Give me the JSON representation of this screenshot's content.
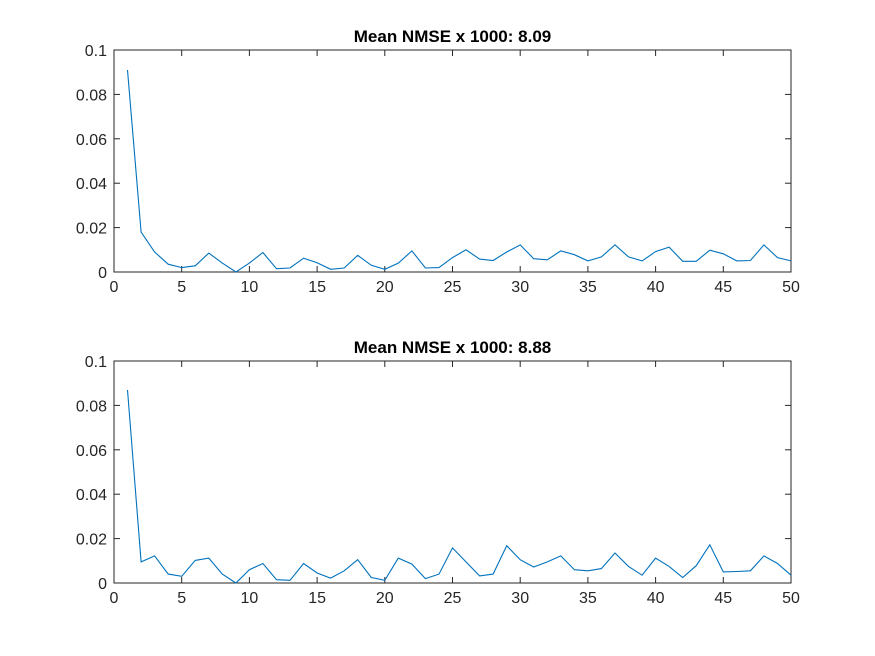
{
  "chart_data": [
    {
      "type": "line",
      "title": "Mean NMSE x 1000: 8.09",
      "xlabel": "",
      "ylabel": "",
      "xlim": [
        0,
        50
      ],
      "ylim": [
        0,
        0.1
      ],
      "xticks": [
        0,
        5,
        10,
        15,
        20,
        25,
        30,
        35,
        40,
        45,
        50
      ],
      "xtick_labels": [
        "0",
        "5",
        "10",
        "15",
        "20",
        "25",
        "30",
        "35",
        "40",
        "45",
        "50"
      ],
      "yticks": [
        0,
        0.02,
        0.04,
        0.06,
        0.08,
        0.1
      ],
      "ytick_labels": [
        "0",
        "0.02",
        "0.04",
        "0.06",
        "0.08",
        "0.1"
      ],
      "grid": false,
      "series": [
        {
          "color": "#0072BD",
          "x": [
            1,
            2,
            3,
            4,
            5,
            6,
            7,
            8,
            9,
            10,
            11,
            12,
            13,
            14,
            15,
            16,
            17,
            18,
            19,
            20,
            21,
            22,
            23,
            24,
            25,
            26,
            27,
            28,
            29,
            30,
            31,
            32,
            33,
            34,
            35,
            36,
            37,
            38,
            39,
            40,
            41,
            42,
            43,
            44,
            45,
            46,
            47,
            48,
            49,
            50
          ],
          "y": [
            0.091,
            0.018,
            0.009,
            0.0035,
            0.002,
            0.0028,
            0.0085,
            0.004,
            0.0,
            0.004,
            0.0088,
            0.0015,
            0.0018,
            0.0062,
            0.0042,
            0.0012,
            0.0018,
            0.0075,
            0.003,
            0.0012,
            0.004,
            0.0095,
            0.0018,
            0.002,
            0.0065,
            0.01,
            0.0058,
            0.0052,
            0.009,
            0.0122,
            0.006,
            0.0055,
            0.0095,
            0.0078,
            0.005,
            0.0068,
            0.0122,
            0.0068,
            0.005,
            0.0092,
            0.0112,
            0.0048,
            0.0048,
            0.0098,
            0.0082,
            0.005,
            0.0052,
            0.0122,
            0.0065,
            0.005
          ]
        }
      ]
    },
    {
      "type": "line",
      "title": "Mean NMSE x 1000: 8.88",
      "xlabel": "",
      "ylabel": "",
      "xlim": [
        0,
        50
      ],
      "ylim": [
        0,
        0.1
      ],
      "xticks": [
        0,
        5,
        10,
        15,
        20,
        25,
        30,
        35,
        40,
        45,
        50
      ],
      "xtick_labels": [
        "0",
        "5",
        "10",
        "15",
        "20",
        "25",
        "30",
        "35",
        "40",
        "45",
        "50"
      ],
      "yticks": [
        0,
        0.02,
        0.04,
        0.06,
        0.08,
        0.1
      ],
      "ytick_labels": [
        "0",
        "0.02",
        "0.04",
        "0.06",
        "0.08",
        "0.1"
      ],
      "grid": false,
      "series": [
        {
          "color": "#0072BD",
          "x": [
            1,
            2,
            3,
            4,
            5,
            6,
            7,
            8,
            9,
            10,
            11,
            12,
            13,
            14,
            15,
            16,
            17,
            18,
            19,
            20,
            21,
            22,
            23,
            24,
            25,
            26,
            27,
            28,
            29,
            30,
            31,
            32,
            33,
            34,
            35,
            36,
            37,
            38,
            39,
            40,
            41,
            42,
            43,
            44,
            45,
            46,
            47,
            48,
            49,
            50
          ],
          "y": [
            0.087,
            0.0095,
            0.0122,
            0.004,
            0.003,
            0.0102,
            0.0112,
            0.004,
            0.0,
            0.006,
            0.0088,
            0.0015,
            0.0012,
            0.0088,
            0.0045,
            0.0022,
            0.0055,
            0.0105,
            0.0025,
            0.0012,
            0.0112,
            0.0085,
            0.002,
            0.004,
            0.0158,
            0.0095,
            0.0032,
            0.004,
            0.0168,
            0.0105,
            0.0072,
            0.0095,
            0.0122,
            0.006,
            0.0055,
            0.0065,
            0.0135,
            0.0075,
            0.0035,
            0.0112,
            0.0075,
            0.0025,
            0.0078,
            0.0172,
            0.005,
            0.0052,
            0.0055,
            0.0122,
            0.0088,
            0.0035
          ]
        }
      ]
    }
  ]
}
